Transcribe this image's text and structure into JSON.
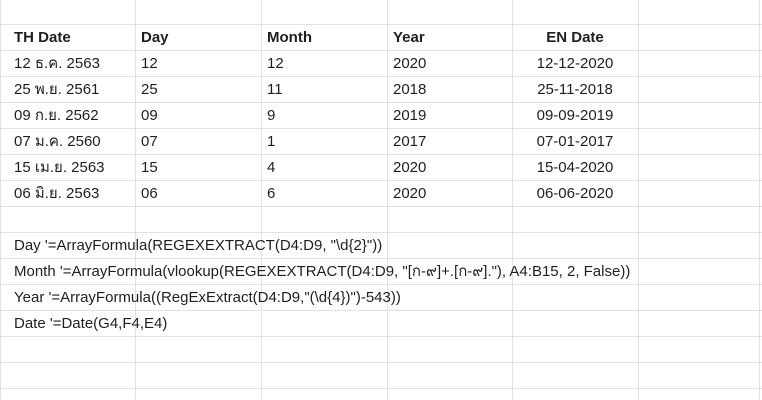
{
  "table": {
    "headers": [
      "TH Date",
      "Day",
      "Month",
      "Year",
      "EN Date"
    ],
    "rows": [
      [
        "12 ธ.ค. 2563",
        "12",
        "12",
        "2020",
        "12-12-2020"
      ],
      [
        "25 พ.ย. 2561",
        "25",
        "11",
        "2018",
        "25-11-2018"
      ],
      [
        "09 ก.ย. 2562",
        "09",
        "9",
        "2019",
        "09-09-2019"
      ],
      [
        "07 ม.ค. 2560",
        "07",
        "1",
        "2017",
        "07-01-2017"
      ],
      [
        "15 เม.ย. 2563",
        "15",
        "4",
        "2020",
        "15-04-2020"
      ],
      [
        "06 มิ.ย. 2563",
        "06",
        "6",
        "2020",
        "06-06-2020"
      ]
    ]
  },
  "notes": [
    "Day '=ArrayFormula(REGEXEXTRACT(D4:D9, \"\\d{2}\"))",
    "Month '=ArrayFormula(vlookup(REGEXEXTRACT(D4:D9, \"[ก-๙]+.[ก-๙].\"), A4:B15, 2, False))",
    "Year '=ArrayFormula((RegExExtract(D4:D9,\"(\\d{4})\")-543))",
    "Date '=Date(G4,F4,E4)"
  ]
}
